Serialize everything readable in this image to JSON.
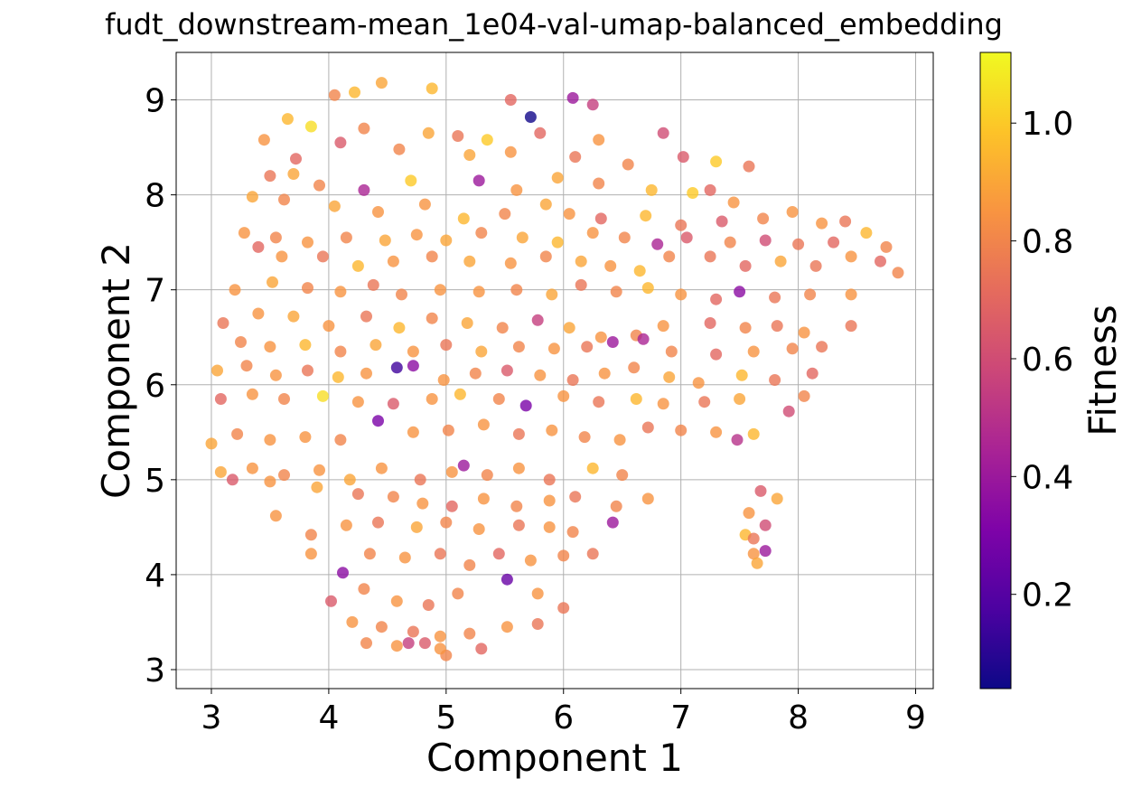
{
  "chart_data": {
    "type": "scatter",
    "title": "fudt_downstream-mean_1e04-val-umap-balanced_embedding",
    "xlabel": "Component 1",
    "ylabel": "Component 2",
    "xlim": [
      2.7,
      9.15
    ],
    "ylim": [
      2.8,
      9.5
    ],
    "xticks": [
      3,
      4,
      5,
      6,
      7,
      8,
      9
    ],
    "yticks": [
      3,
      4,
      5,
      6,
      7,
      8,
      9
    ],
    "grid": true,
    "colorbar": {
      "label": "Fitness",
      "colormap": "plasma",
      "range": [
        0.04,
        1.12
      ],
      "ticks": [
        0.2,
        0.4,
        0.6,
        0.8,
        1.0
      ],
      "tick_labels": [
        "0.2",
        "0.4",
        "0.6",
        "0.8",
        "1.0"
      ]
    },
    "points": [
      [
        4.45,
        9.18,
        0.9
      ],
      [
        4.05,
        9.05,
        0.8
      ],
      [
        4.22,
        9.08,
        0.95
      ],
      [
        4.88,
        9.12,
        0.95
      ],
      [
        5.55,
        9.0,
        0.7
      ],
      [
        6.08,
        9.02,
        0.4
      ],
      [
        6.25,
        8.95,
        0.55
      ],
      [
        5.72,
        8.82,
        0.05
      ],
      [
        3.65,
        8.8,
        0.95
      ],
      [
        3.85,
        8.72,
        1.05
      ],
      [
        4.3,
        8.7,
        0.8
      ],
      [
        4.85,
        8.65,
        0.9
      ],
      [
        5.1,
        8.62,
        0.75
      ],
      [
        5.35,
        8.58,
        1.0
      ],
      [
        5.8,
        8.65,
        0.7
      ],
      [
        6.3,
        8.58,
        0.85
      ],
      [
        6.85,
        8.65,
        0.6
      ],
      [
        3.45,
        8.58,
        0.85
      ],
      [
        3.72,
        8.38,
        0.7
      ],
      [
        4.1,
        8.55,
        0.65
      ],
      [
        4.6,
        8.48,
        0.8
      ],
      [
        5.2,
        8.42,
        0.9
      ],
      [
        5.55,
        8.45,
        0.85
      ],
      [
        6.1,
        8.4,
        0.75
      ],
      [
        6.55,
        8.32,
        0.8
      ],
      [
        7.02,
        8.4,
        0.65
      ],
      [
        7.3,
        8.35,
        1.0
      ],
      [
        7.58,
        8.3,
        0.75
      ],
      [
        3.5,
        8.2,
        0.75
      ],
      [
        3.7,
        8.22,
        0.9
      ],
      [
        3.92,
        8.1,
        0.8
      ],
      [
        4.3,
        8.05,
        0.45
      ],
      [
        4.7,
        8.15,
        1.0
      ],
      [
        5.28,
        8.15,
        0.4
      ],
      [
        5.6,
        8.05,
        0.85
      ],
      [
        5.95,
        8.18,
        0.9
      ],
      [
        6.3,
        8.12,
        0.8
      ],
      [
        6.75,
        8.05,
        0.95
      ],
      [
        7.1,
        8.02,
        1.0
      ],
      [
        7.25,
        8.05,
        0.7
      ],
      [
        7.45,
        7.92,
        0.85
      ],
      [
        3.35,
        7.98,
        0.9
      ],
      [
        3.62,
        7.95,
        0.8
      ],
      [
        4.05,
        7.88,
        0.9
      ],
      [
        4.42,
        7.82,
        0.85
      ],
      [
        4.82,
        7.9,
        0.85
      ],
      [
        5.15,
        7.75,
        0.95
      ],
      [
        5.5,
        7.8,
        0.8
      ],
      [
        5.85,
        7.9,
        0.9
      ],
      [
        6.05,
        7.8,
        0.85
      ],
      [
        6.32,
        7.75,
        0.7
      ],
      [
        6.7,
        7.78,
        0.95
      ],
      [
        7.0,
        7.68,
        0.75
      ],
      [
        7.35,
        7.72,
        0.65
      ],
      [
        7.7,
        7.75,
        0.8
      ],
      [
        7.95,
        7.82,
        0.85
      ],
      [
        8.2,
        7.7,
        0.85
      ],
      [
        8.4,
        7.72,
        0.75
      ],
      [
        3.28,
        7.6,
        0.85
      ],
      [
        3.55,
        7.55,
        0.8
      ],
      [
        3.82,
        7.5,
        0.85
      ],
      [
        4.15,
        7.55,
        0.8
      ],
      [
        4.48,
        7.52,
        0.9
      ],
      [
        4.75,
        7.58,
        0.85
      ],
      [
        5.0,
        7.52,
        0.9
      ],
      [
        5.3,
        7.6,
        0.8
      ],
      [
        5.65,
        7.55,
        0.9
      ],
      [
        5.95,
        7.5,
        0.95
      ],
      [
        6.25,
        7.6,
        0.85
      ],
      [
        6.52,
        7.55,
        0.8
      ],
      [
        6.8,
        7.48,
        0.45
      ],
      [
        7.05,
        7.55,
        0.65
      ],
      [
        7.42,
        7.5,
        0.8
      ],
      [
        7.72,
        7.52,
        0.6
      ],
      [
        8.0,
        7.48,
        0.75
      ],
      [
        8.3,
        7.5,
        0.7
      ],
      [
        8.58,
        7.6,
        0.95
      ],
      [
        8.75,
        7.45,
        0.8
      ],
      [
        3.4,
        7.45,
        0.7
      ],
      [
        3.6,
        7.35,
        0.85
      ],
      [
        3.95,
        7.35,
        0.75
      ],
      [
        4.25,
        7.25,
        0.95
      ],
      [
        4.55,
        7.3,
        0.85
      ],
      [
        4.88,
        7.35,
        0.8
      ],
      [
        5.2,
        7.3,
        0.9
      ],
      [
        5.55,
        7.28,
        0.85
      ],
      [
        5.85,
        7.35,
        0.8
      ],
      [
        6.15,
        7.3,
        0.9
      ],
      [
        6.4,
        7.25,
        0.85
      ],
      [
        6.65,
        7.2,
        0.95
      ],
      [
        6.9,
        7.35,
        0.8
      ],
      [
        7.25,
        7.35,
        0.75
      ],
      [
        7.55,
        7.25,
        0.7
      ],
      [
        7.85,
        7.3,
        0.9
      ],
      [
        8.15,
        7.25,
        0.75
      ],
      [
        8.45,
        7.35,
        0.85
      ],
      [
        8.7,
        7.3,
        0.7
      ],
      [
        8.85,
        7.18,
        0.8
      ],
      [
        3.2,
        7.0,
        0.85
      ],
      [
        3.52,
        7.08,
        0.9
      ],
      [
        3.82,
        7.02,
        0.8
      ],
      [
        4.1,
        6.98,
        0.85
      ],
      [
        4.38,
        7.05,
        0.75
      ],
      [
        4.62,
        6.95,
        0.8
      ],
      [
        4.95,
        7.0,
        0.85
      ],
      [
        5.28,
        6.98,
        0.85
      ],
      [
        5.6,
        7.0,
        0.8
      ],
      [
        5.9,
        6.95,
        0.9
      ],
      [
        6.15,
        7.05,
        0.75
      ],
      [
        6.45,
        6.98,
        0.8
      ],
      [
        6.72,
        7.02,
        0.95
      ],
      [
        7.0,
        6.95,
        0.85
      ],
      [
        7.3,
        6.9,
        0.7
      ],
      [
        7.5,
        6.98,
        0.35
      ],
      [
        7.8,
        6.92,
        0.75
      ],
      [
        8.1,
        6.95,
        0.8
      ],
      [
        8.45,
        6.95,
        0.85
      ],
      [
        3.1,
        6.65,
        0.75
      ],
      [
        3.4,
        6.75,
        0.85
      ],
      [
        3.7,
        6.72,
        0.9
      ],
      [
        4.0,
        6.62,
        0.85
      ],
      [
        4.32,
        6.72,
        0.75
      ],
      [
        4.6,
        6.6,
        0.95
      ],
      [
        4.88,
        6.7,
        0.8
      ],
      [
        5.18,
        6.65,
        0.9
      ],
      [
        5.48,
        6.6,
        0.8
      ],
      [
        5.78,
        6.68,
        0.55
      ],
      [
        6.05,
        6.6,
        0.9
      ],
      [
        6.32,
        6.5,
        0.85
      ],
      [
        6.62,
        6.52,
        0.8
      ],
      [
        6.85,
        6.62,
        0.85
      ],
      [
        7.25,
        6.65,
        0.7
      ],
      [
        7.55,
        6.6,
        0.8
      ],
      [
        7.82,
        6.62,
        0.75
      ],
      [
        8.05,
        6.55,
        0.85
      ],
      [
        8.45,
        6.62,
        0.75
      ],
      [
        3.25,
        6.45,
        0.8
      ],
      [
        3.5,
        6.4,
        0.85
      ],
      [
        3.8,
        6.42,
        0.95
      ],
      [
        4.1,
        6.35,
        0.8
      ],
      [
        4.4,
        6.42,
        0.9
      ],
      [
        4.72,
        6.35,
        0.85
      ],
      [
        5.0,
        6.42,
        0.75
      ],
      [
        5.3,
        6.35,
        0.9
      ],
      [
        5.62,
        6.4,
        0.8
      ],
      [
        5.92,
        6.38,
        0.85
      ],
      [
        6.2,
        6.4,
        0.75
      ],
      [
        6.42,
        6.45,
        0.4
      ],
      [
        6.68,
        6.48,
        0.45
      ],
      [
        6.92,
        6.35,
        0.8
      ],
      [
        7.3,
        6.32,
        0.7
      ],
      [
        7.62,
        6.35,
        0.85
      ],
      [
        7.95,
        6.38,
        0.8
      ],
      [
        8.2,
        6.4,
        0.75
      ],
      [
        3.05,
        6.15,
        0.9
      ],
      [
        3.3,
        6.2,
        0.8
      ],
      [
        3.55,
        6.1,
        0.85
      ],
      [
        3.82,
        6.15,
        0.75
      ],
      [
        4.08,
        6.08,
        0.95
      ],
      [
        4.32,
        6.12,
        0.85
      ],
      [
        4.58,
        6.18,
        0.15
      ],
      [
        4.72,
        6.2,
        0.35
      ],
      [
        4.98,
        6.05,
        0.85
      ],
      [
        5.25,
        6.12,
        0.8
      ],
      [
        5.52,
        6.15,
        0.65
      ],
      [
        5.8,
        6.1,
        0.85
      ],
      [
        6.08,
        6.05,
        0.75
      ],
      [
        6.35,
        6.12,
        0.85
      ],
      [
        6.6,
        6.18,
        0.8
      ],
      [
        6.9,
        6.08,
        0.9
      ],
      [
        7.15,
        6.02,
        0.85
      ],
      [
        7.52,
        6.1,
        0.95
      ],
      [
        7.8,
        6.05,
        0.75
      ],
      [
        8.12,
        6.12,
        0.7
      ],
      [
        3.08,
        5.85,
        0.7
      ],
      [
        3.35,
        5.9,
        0.85
      ],
      [
        3.62,
        5.85,
        0.8
      ],
      [
        3.95,
        5.88,
        1.05
      ],
      [
        4.25,
        5.82,
        0.85
      ],
      [
        4.55,
        5.8,
        0.65
      ],
      [
        4.88,
        5.85,
        0.85
      ],
      [
        5.12,
        5.9,
        0.95
      ],
      [
        5.45,
        5.85,
        0.8
      ],
      [
        5.68,
        5.78,
        0.3
      ],
      [
        6.0,
        5.88,
        0.85
      ],
      [
        6.3,
        5.82,
        0.75
      ],
      [
        6.62,
        5.85,
        0.95
      ],
      [
        6.85,
        5.8,
        0.85
      ],
      [
        7.2,
        5.82,
        0.75
      ],
      [
        7.5,
        5.85,
        0.9
      ],
      [
        7.92,
        5.72,
        0.6
      ],
      [
        8.05,
        5.88,
        0.8
      ],
      [
        3.0,
        5.38,
        0.9
      ],
      [
        3.22,
        5.48,
        0.8
      ],
      [
        3.5,
        5.42,
        0.85
      ],
      [
        3.8,
        5.45,
        0.85
      ],
      [
        4.1,
        5.42,
        0.8
      ],
      [
        4.42,
        5.62,
        0.3
      ],
      [
        4.72,
        5.5,
        0.85
      ],
      [
        5.02,
        5.52,
        0.8
      ],
      [
        5.32,
        5.58,
        0.85
      ],
      [
        5.62,
        5.48,
        0.75
      ],
      [
        5.9,
        5.52,
        0.85
      ],
      [
        6.18,
        5.45,
        0.8
      ],
      [
        6.48,
        5.42,
        0.85
      ],
      [
        6.72,
        5.55,
        0.75
      ],
      [
        7.0,
        5.52,
        0.8
      ],
      [
        7.3,
        5.5,
        0.85
      ],
      [
        7.48,
        5.42,
        0.5
      ],
      [
        7.62,
        5.48,
        0.95
      ],
      [
        3.08,
        5.08,
        0.9
      ],
      [
        3.35,
        5.12,
        0.85
      ],
      [
        3.62,
        5.05,
        0.8
      ],
      [
        3.92,
        5.1,
        0.85
      ],
      [
        4.18,
        5.0,
        0.9
      ],
      [
        4.45,
        5.12,
        0.85
      ],
      [
        4.78,
        5.0,
        0.75
      ],
      [
        5.05,
        5.08,
        0.85
      ],
      [
        5.15,
        5.15,
        0.4
      ],
      [
        5.35,
        5.05,
        0.8
      ],
      [
        5.62,
        5.12,
        0.85
      ],
      [
        5.88,
        5.0,
        0.75
      ],
      [
        6.25,
        5.12,
        0.95
      ],
      [
        6.5,
        5.05,
        0.8
      ],
      [
        3.18,
        5.0,
        0.65
      ],
      [
        3.5,
        4.98,
        0.85
      ],
      [
        3.9,
        4.92,
        0.9
      ],
      [
        4.25,
        4.85,
        0.75
      ],
      [
        4.55,
        4.82,
        0.8
      ],
      [
        4.8,
        4.75,
        0.85
      ],
      [
        5.05,
        4.72,
        0.7
      ],
      [
        5.32,
        4.8,
        0.85
      ],
      [
        5.6,
        4.72,
        0.8
      ],
      [
        5.88,
        4.78,
        0.85
      ],
      [
        6.1,
        4.82,
        0.75
      ],
      [
        6.45,
        4.72,
        0.8
      ],
      [
        6.72,
        4.8,
        0.85
      ],
      [
        7.68,
        4.88,
        0.65
      ],
      [
        7.82,
        4.8,
        0.9
      ],
      [
        3.55,
        4.62,
        0.85
      ],
      [
        3.85,
        4.42,
        0.8
      ],
      [
        4.15,
        4.52,
        0.85
      ],
      [
        4.42,
        4.55,
        0.75
      ],
      [
        4.75,
        4.5,
        0.9
      ],
      [
        5.0,
        4.55,
        0.8
      ],
      [
        5.28,
        4.48,
        0.85
      ],
      [
        5.62,
        4.52,
        0.75
      ],
      [
        5.88,
        4.5,
        0.85
      ],
      [
        6.08,
        4.45,
        0.8
      ],
      [
        6.42,
        4.55,
        0.4
      ],
      [
        7.58,
        4.65,
        0.85
      ],
      [
        7.55,
        4.42,
        0.95
      ],
      [
        7.62,
        4.38,
        0.75
      ],
      [
        7.72,
        4.52,
        0.6
      ],
      [
        3.85,
        4.22,
        0.85
      ],
      [
        4.12,
        4.02,
        0.35
      ],
      [
        4.35,
        4.22,
        0.8
      ],
      [
        4.65,
        4.18,
        0.85
      ],
      [
        4.95,
        4.22,
        0.75
      ],
      [
        5.2,
        4.1,
        0.8
      ],
      [
        5.45,
        4.22,
        0.7
      ],
      [
        5.72,
        4.15,
        0.85
      ],
      [
        6.0,
        4.2,
        0.8
      ],
      [
        6.25,
        4.22,
        0.75
      ],
      [
        7.62,
        4.22,
        0.85
      ],
      [
        7.72,
        4.25,
        0.4
      ],
      [
        7.65,
        4.12,
        0.9
      ],
      [
        4.02,
        3.72,
        0.65
      ],
      [
        4.3,
        3.85,
        0.8
      ],
      [
        4.58,
        3.72,
        0.85
      ],
      [
        4.85,
        3.68,
        0.75
      ],
      [
        5.1,
        3.8,
        0.8
      ],
      [
        5.52,
        3.95,
        0.25
      ],
      [
        5.78,
        3.8,
        0.85
      ],
      [
        6.0,
        3.65,
        0.75
      ],
      [
        4.2,
        3.5,
        0.85
      ],
      [
        4.45,
        3.45,
        0.8
      ],
      [
        4.72,
        3.4,
        0.75
      ],
      [
        4.95,
        3.35,
        0.85
      ],
      [
        5.2,
        3.38,
        0.8
      ],
      [
        5.52,
        3.45,
        0.85
      ],
      [
        5.78,
        3.48,
        0.75
      ],
      [
        4.32,
        3.28,
        0.8
      ],
      [
        4.58,
        3.25,
        0.85
      ],
      [
        4.82,
        3.28,
        0.65
      ],
      [
        5.0,
        3.15,
        0.8
      ],
      [
        5.3,
        3.22,
        0.7
      ],
      [
        4.68,
        3.28,
        0.55
      ],
      [
        4.95,
        3.22,
        0.85
      ]
    ]
  }
}
